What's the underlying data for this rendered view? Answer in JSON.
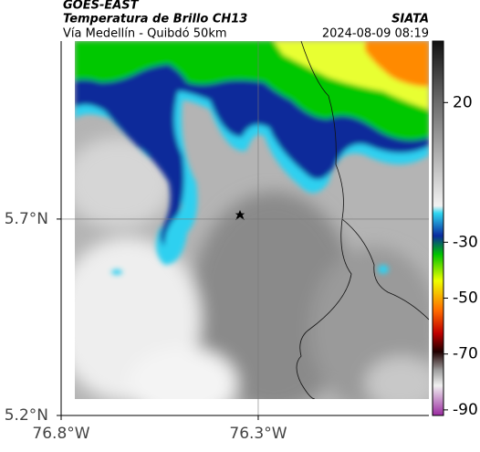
{
  "chart_data": {
    "type": "map",
    "title": "GOES-EAST",
    "subtitle": "Temperatura de Brillo CH13",
    "region": "Vía Medellín - Quibdó 50km",
    "source": "SIATA",
    "datetime": "2024-08-09 08:19",
    "xlim": [
      -76.8,
      -75.867
    ],
    "ylim": [
      5.2,
      6.153
    ],
    "xticks": [
      {
        "value": -76.8,
        "label": "76.8°W"
      },
      {
        "value": -76.3,
        "label": "76.3°W"
      }
    ],
    "yticks": [
      {
        "value": 5.7,
        "label": "5.7°N"
      },
      {
        "value": 5.2,
        "label": "5.2°N"
      }
    ],
    "grid": true,
    "colorbar": {
      "lim": [
        -92,
        42
      ],
      "ticks": [
        20,
        -30,
        -50,
        -70,
        -90
      ]
    }
  }
}
